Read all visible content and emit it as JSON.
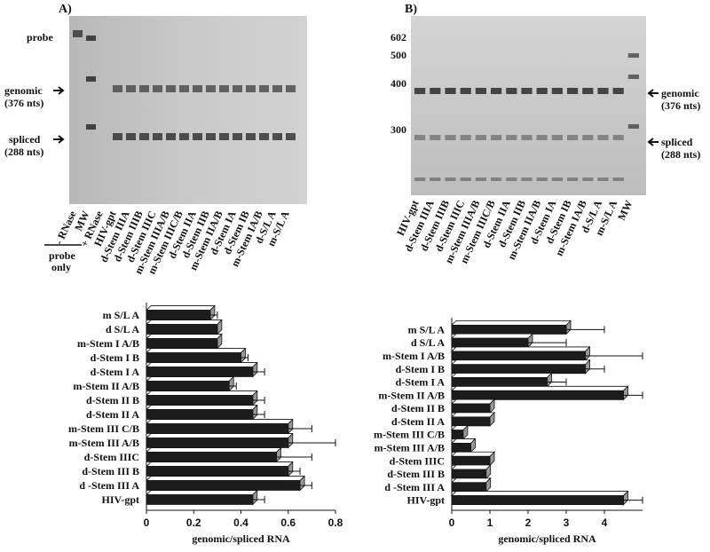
{
  "gels": [
    {
      "label": "A)",
      "left_labels": [
        "probe",
        "genomic",
        "(376 nts)",
        "spliced",
        "(288 nts)"
      ],
      "lanes": [
        "- RNase",
        "MW",
        "+ RNase",
        "HIV-gpt",
        "d-Stem IIIA",
        "d-Stem IIIB",
        "d-Stem IIIC",
        "m-Stem IIIA/B",
        "m-Stem IIIC/B",
        "d-Stem IIA",
        "d-Stem IIB",
        "m-Stem IIA/B",
        "d-Stem IA",
        "d-Stem IB",
        "m-Stem IA/B",
        "d-S/L A",
        "m-S/L A"
      ],
      "bracket": [
        "probe",
        "only"
      ]
    },
    {
      "label": "B)",
      "size_markers": [
        602,
        500,
        400,
        300
      ],
      "right_labels": [
        "genomic",
        "(376 nts)",
        "spliced",
        "(288 nts)"
      ],
      "lanes": [
        "HIV-gpt",
        "d-Stem IIIA",
        "d-Stem IIIB",
        "d-Stem IIIC",
        "m-Stem IIIA/B",
        "m-Stem IIIC/B",
        "d-Stem IIA",
        "d-Stem IIB",
        "m-Stem IIA/B",
        "d-Stem IA",
        "d-Stem IB",
        "m-Stem IA/B",
        "d-S/L A",
        "m-S/L A",
        "MW"
      ]
    }
  ],
  "chart_data": [
    {
      "type": "bar",
      "orientation": "horizontal",
      "xlabel": "genomic/spliced RNA",
      "color": "#1c1c1c",
      "categories": [
        "m S/L A",
        "d S/L A",
        "m-Stem I A/B",
        "d-Stem I B",
        "d-Stem I A",
        "m-Stem II A/B",
        "d-Stem II B",
        "d-Stem II A",
        "m-Stem III C/B",
        "m-Stem III A/B",
        "d-Stem IIIC",
        "d-Stem III B",
        "d -Stem III A",
        "HIV-gpt"
      ],
      "values": [
        0.27,
        0.3,
        0.3,
        0.4,
        0.45,
        0.35,
        0.45,
        0.45,
        0.6,
        0.6,
        0.55,
        0.6,
        0.65,
        0.45
      ],
      "errors": [
        0.03,
        null,
        null,
        0.03,
        0.05,
        0.03,
        0.05,
        0.05,
        0.1,
        0.2,
        0.15,
        0.05,
        0.05,
        0.05
      ],
      "xlim": [
        0,
        0.8
      ],
      "xticks": [
        0,
        0.2,
        0.4,
        0.6,
        0.8
      ]
    },
    {
      "type": "bar",
      "orientation": "horizontal",
      "xlabel": "genomic/spliced RNA",
      "color": "#1c1c1c",
      "categories": [
        "m S/L A",
        "d S/L A",
        "m-Stem I A/B",
        "d-Stem I B",
        "d-Stem I A",
        "m-Stem II A/B",
        "d-Stem II B",
        "d-Stem II A",
        "m-Stem III C/B",
        "m-Stem III A/B",
        "d-Stem IIIC",
        "d-Stem III B",
        "d -Stem III A",
        "HIV-gpt"
      ],
      "values": [
        3.0,
        2.0,
        3.5,
        3.5,
        2.5,
        4.5,
        1.0,
        1.0,
        0.3,
        0.5,
        1.0,
        0.9,
        0.9,
        4.5
      ],
      "errors": [
        1.0,
        1.0,
        1.5,
        0.5,
        0.5,
        0.5,
        null,
        null,
        null,
        null,
        null,
        null,
        null,
        0.5
      ],
      "xlim": [
        0,
        5
      ],
      "xticks": [
        0,
        1,
        2,
        3,
        4
      ]
    }
  ]
}
